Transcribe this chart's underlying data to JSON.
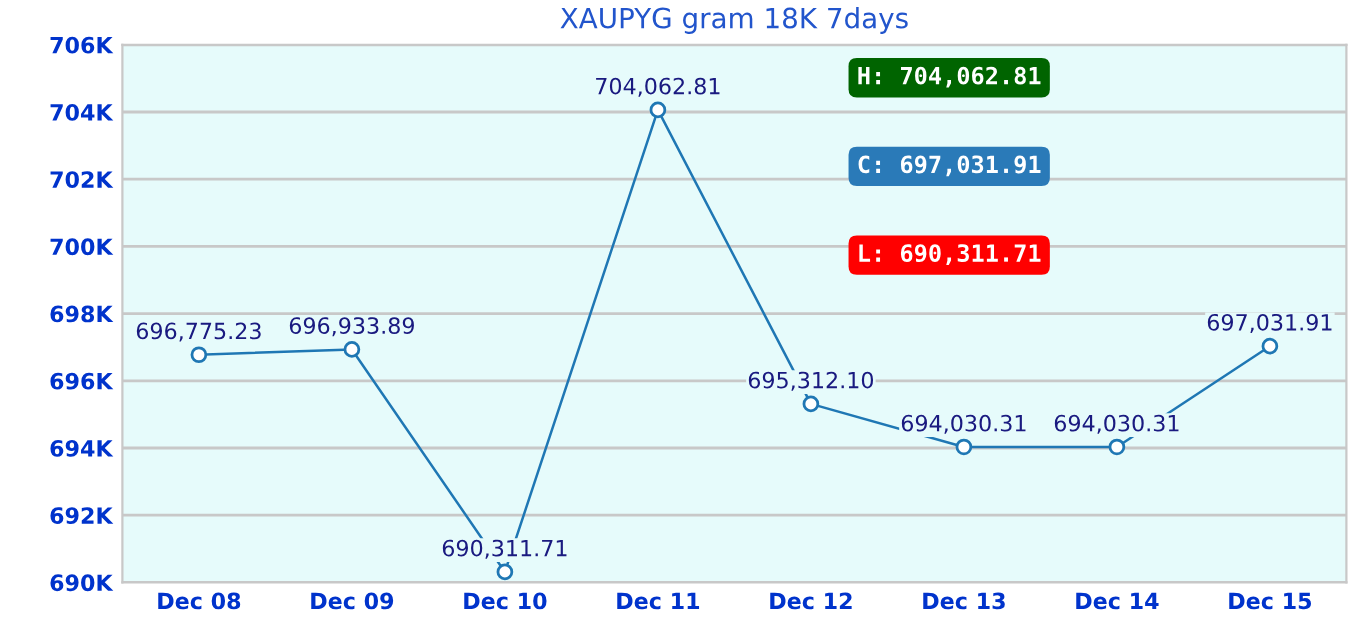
{
  "chart_data": {
    "type": "line",
    "title": "XAUPYG gram 18K 7days",
    "categories": [
      "Dec 08",
      "Dec 09",
      "Dec 10",
      "Dec 11",
      "Dec 12",
      "Dec 13",
      "Dec 14",
      "Dec 15"
    ],
    "series": [
      {
        "color": "#1f77b4",
        "values": [
          696775.23,
          696933.89,
          690311.71,
          704062.81,
          695312.1,
          694030.31,
          694030.31,
          697031.91
        ],
        "value_labels": [
          "696,775.23",
          "696,933.89",
          "690,311.71",
          "704,062.81",
          "695,312.10",
          "694,030.31",
          "694,030.31",
          "697,031.91"
        ]
      }
    ],
    "ylim": [
      690000,
      706000
    ],
    "yticks": [
      {
        "value": 690000,
        "label": "690K"
      },
      {
        "value": 692000,
        "label": "692K"
      },
      {
        "value": 694000,
        "label": "694K"
      },
      {
        "value": 696000,
        "label": "696K"
      },
      {
        "value": 698000,
        "label": "698K"
      },
      {
        "value": 700000,
        "label": "700K"
      },
      {
        "value": 702000,
        "label": "702K"
      },
      {
        "value": 704000,
        "label": "704K"
      },
      {
        "value": 706000,
        "label": "706K"
      }
    ],
    "annotations": [
      "H: 704,062.81",
      "C: 697,031.91",
      "L: 690,311.71"
    ],
    "grid": "y",
    "marker": "circle",
    "line_style": "solid",
    "legend": false
  }
}
